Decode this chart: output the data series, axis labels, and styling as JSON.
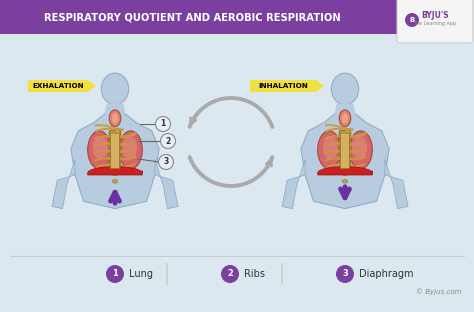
{
  "title": "RESPIRATORY QUOTIENT AND AEROBIC RESPIRATION",
  "title_bg": "#7b3fa0",
  "title_color": "#ffffff",
  "bg_color": "#dce8f0",
  "left_label": "EXHALATION",
  "right_label": "INHALATION",
  "label_bg": "#f0e040",
  "label_color": "#000000",
  "legend_items": [
    {
      "num": "1",
      "text": "Lung"
    },
    {
      "num": "2",
      "text": "Ribs"
    },
    {
      "num": "3",
      "text": "Diaphragm"
    }
  ],
  "legend_circle_color": "#7b3fa0",
  "legend_text_color": "#333333",
  "byju_text": "© Byjus.com",
  "arrow_color": "#aaaaaa",
  "body_fill": "#b8ccdf",
  "body_edge": "#90adc8",
  "lung_color": "#d86060",
  "lung_inner": "#e88080",
  "rib_color": "#c89840",
  "rib_edge": "#a07828",
  "diaphragm_color": "#cc2020",
  "throat_color": "#e08070",
  "spine_color": "#c8a040",
  "clavicle_color": "#c8a040",
  "left_arrow_color": "#6b2fa0",
  "right_arrow_color": "#6b2fa0",
  "number_circle_color": "#e8eef4",
  "number_circle_edge": "#888888",
  "separator_color": "#cccccc",
  "connector_color": "#666666",
  "byju_box_color": "#f5f5f5",
  "byju_text_color": "#7b3fa0",
  "byju_icon_color": "#7b3fa0"
}
